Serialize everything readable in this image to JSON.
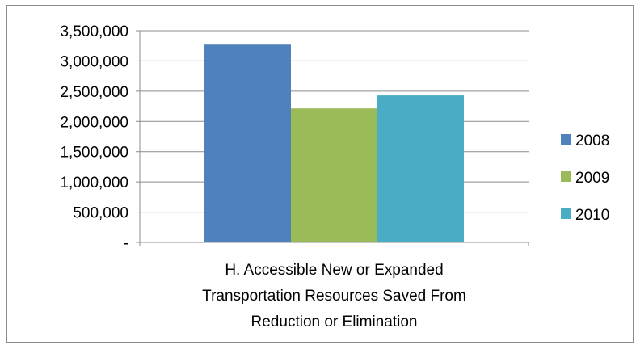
{
  "chart_data": {
    "type": "bar",
    "title": "",
    "xlabel": "",
    "ylabel": "",
    "ylim": [
      0,
      3500000
    ],
    "yticks": [
      0,
      500000,
      1000000,
      1500000,
      2000000,
      2500000,
      3000000,
      3500000
    ],
    "ytick_labels": [
      "-",
      "500,000",
      "1,000,000",
      "1,500,000",
      "2,000,000",
      "2,500,000",
      "3,000,000",
      "3,500,000"
    ],
    "categories": [
      "H. Accessible New or Expanded Transportation Resources Saved From Reduction or Elimination"
    ],
    "category_label_lines": [
      "H. Accessible New or Expanded",
      "Transportation Resources Saved From",
      "Reduction or Elimination"
    ],
    "series": [
      {
        "name": "2008",
        "values": [
          3270000
        ],
        "color": "#4f81bd"
      },
      {
        "name": "2009",
        "values": [
          2215000
        ],
        "color": "#9bbb59"
      },
      {
        "name": "2010",
        "values": [
          2430000
        ],
        "color": "#4bacc6"
      }
    ],
    "grid": true,
    "legend_position": "right"
  }
}
